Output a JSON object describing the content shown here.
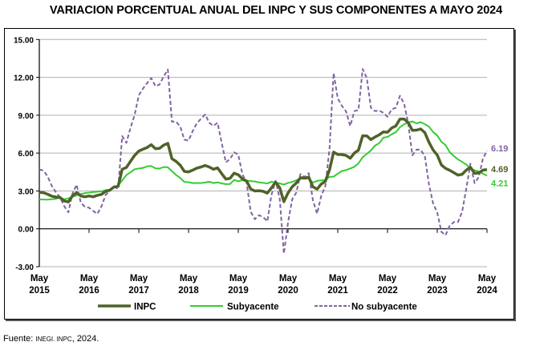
{
  "chart_data": {
    "type": "line",
    "title": "VARIACION PORCENTUAL ANUAL DEL INPC Y SUS COMPONENTES A MAYO 2024",
    "xlabel": "",
    "ylabel": "",
    "ylim": [
      -3,
      15
    ],
    "yticks": [
      "15.00",
      "12.00",
      "9.00",
      "6.00",
      "3.00",
      "0.00",
      "-3.00"
    ],
    "ytick_values": [
      15,
      12,
      9,
      6,
      3,
      0,
      -3
    ],
    "x_start": "May 2015",
    "x_tick_labels": [
      [
        "May",
        "2015"
      ],
      [
        "May",
        "2016"
      ],
      [
        "May",
        "2017"
      ],
      [
        "May",
        "2018"
      ],
      [
        "May",
        "2019"
      ],
      [
        "May",
        "2020"
      ],
      [
        "May",
        "2021"
      ],
      [
        "May",
        "2022"
      ],
      [
        "May",
        "2023"
      ],
      [
        "May",
        "2024"
      ]
    ],
    "grid": true,
    "legend_position": "bottom",
    "series": [
      {
        "name": "INPC",
        "color": "#4f6228",
        "style": "solid",
        "end_label": "4.69",
        "values": [
          2.88,
          2.87,
          2.74,
          2.59,
          2.52,
          2.48,
          2.21,
          2.13,
          2.61,
          2.87,
          2.6,
          2.54,
          2.6,
          2.54,
          2.65,
          2.73,
          2.97,
          3.06,
          3.31,
          3.36,
          4.72,
          4.86,
          5.35,
          5.82,
          6.16,
          6.31,
          6.44,
          6.66,
          6.35,
          6.37,
          6.63,
          6.77,
          5.55,
          5.34,
          5.04,
          4.55,
          4.51,
          4.65,
          4.81,
          4.9,
          5.02,
          4.9,
          4.72,
          4.83,
          4.37,
          3.94,
          4.0,
          4.41,
          4.28,
          3.95,
          3.78,
          3.16,
          3.0,
          3.02,
          2.97,
          2.83,
          3.24,
          3.7,
          3.25,
          2.15,
          2.84,
          3.33,
          3.62,
          4.05,
          4.01,
          4.09,
          3.33,
          3.15,
          3.54,
          3.76,
          4.67,
          6.08,
          5.89,
          5.88,
          5.81,
          5.59,
          6.0,
          6.24,
          7.37,
          7.36,
          7.07,
          7.28,
          7.45,
          7.68,
          7.65,
          7.99,
          8.15,
          8.7,
          8.7,
          8.41,
          7.8,
          7.82,
          7.91,
          7.62,
          6.85,
          6.25,
          5.84,
          5.06,
          4.79,
          4.64,
          4.45,
          4.26,
          4.32,
          4.66,
          4.88,
          4.4,
          4.42,
          4.65,
          4.69
        ]
      },
      {
        "name": "Subyacente",
        "color": "#33cc33",
        "style": "solid",
        "end_label": "4.21",
        "values": [
          2.33,
          2.32,
          2.31,
          2.34,
          2.38,
          2.47,
          2.34,
          2.41,
          2.54,
          2.65,
          2.76,
          2.83,
          2.87,
          2.92,
          2.94,
          2.97,
          3.07,
          3.08,
          3.29,
          3.44,
          3.84,
          4.26,
          4.48,
          4.72,
          4.78,
          4.83,
          4.94,
          4.98,
          4.8,
          4.77,
          4.9,
          4.87,
          4.56,
          4.27,
          4.02,
          3.71,
          3.69,
          3.62,
          3.63,
          3.63,
          3.67,
          3.73,
          3.63,
          3.68,
          3.6,
          3.54,
          3.55,
          3.87,
          3.77,
          3.85,
          3.82,
          3.78,
          3.75,
          3.68,
          3.65,
          3.59,
          3.73,
          3.66,
          3.6,
          3.5,
          3.64,
          3.71,
          3.85,
          3.97,
          3.99,
          3.98,
          3.66,
          3.8,
          3.84,
          3.87,
          4.12,
          4.13,
          4.37,
          4.58,
          4.66,
          4.78,
          4.92,
          5.19,
          5.67,
          5.94,
          6.21,
          6.59,
          6.78,
          7.22,
          7.28,
          7.49,
          7.65,
          8.05,
          8.28,
          8.42,
          8.51,
          8.35,
          8.45,
          8.29,
          8.09,
          7.67,
          7.39,
          6.89,
          6.64,
          6.08,
          5.76,
          5.5,
          5.3,
          5.09,
          4.76,
          4.64,
          4.55,
          4.37,
          4.21
        ]
      },
      {
        "name": "No subyacente",
        "color": "#8064a2",
        "style": "dashed",
        "end_label": "6.19",
        "values": [
          4.7,
          4.62,
          4.15,
          3.41,
          2.9,
          2.51,
          1.8,
          1.31,
          2.79,
          3.5,
          2.07,
          1.75,
          1.67,
          1.42,
          1.18,
          1.78,
          2.69,
          2.99,
          3.35,
          3.15,
          7.35,
          6.81,
          8.01,
          9.02,
          10.58,
          11.11,
          11.54,
          11.94,
          11.3,
          11.43,
          12.07,
          12.62,
          8.49,
          8.49,
          8.09,
          7.06,
          6.99,
          7.74,
          8.36,
          8.72,
          9.06,
          8.4,
          8.16,
          8.4,
          6.82,
          5.26,
          5.53,
          6.06,
          5.88,
          4.31,
          3.69,
          1.35,
          0.76,
          1.08,
          0.93,
          0.59,
          2.68,
          3.8,
          2.37,
          -1.96,
          0.51,
          2.34,
          2.87,
          4.34,
          4.1,
          4.41,
          2.26,
          1.2,
          2.59,
          3.39,
          6.34,
          12.34,
          10.33,
          9.74,
          9.3,
          8.15,
          9.33,
          9.41,
          12.66,
          11.94,
          9.59,
          9.33,
          9.38,
          9.19,
          8.88,
          9.47,
          9.59,
          10.54,
          9.92,
          8.34,
          5.83,
          6.28,
          6.26,
          5.77,
          3.51,
          2.01,
          1.28,
          -0.24,
          -0.51,
          0.25,
          0.54,
          0.53,
          1.35,
          3.2,
          5.16,
          3.62,
          4.1,
          5.55,
          6.19
        ]
      }
    ]
  },
  "footer": {
    "prefix": "Fuente: ",
    "source": "INEGI. INPC",
    "suffix": ", 2024."
  }
}
